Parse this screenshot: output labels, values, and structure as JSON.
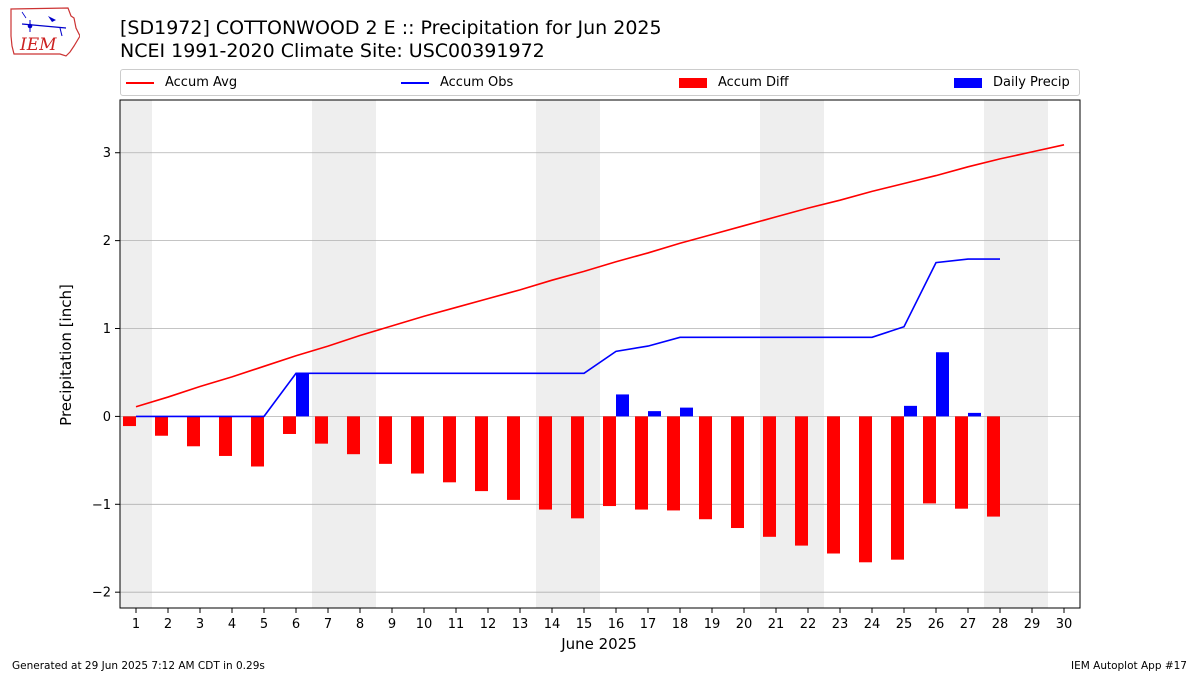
{
  "header": {
    "title": "[SD1972] COTTONWOOD 2 E :: Precipitation for Jun 2025",
    "subtitle": "NCEI 1991-2020 Climate Site: USC00391972",
    "logo_text": "IEM"
  },
  "footer": {
    "generated": "Generated at 29 Jun 2025 7:12 AM CDT in 0.29s",
    "app": "IEM Autoplot App #17"
  },
  "legend": {
    "accum_avg": "Accum Avg",
    "accum_obs": "Accum Obs",
    "accum_diff": "Accum Diff",
    "daily_precip": "Daily Precip"
  },
  "colors": {
    "accum_avg": "#ff0000",
    "accum_obs": "#0000ff",
    "accum_diff": "#ff0000",
    "daily_precip": "#0000ff",
    "weekend_shade": "#eeeeee",
    "grid": "#b0b0b0"
  },
  "chart_data": {
    "type": "bar",
    "xlabel": "June 2025",
    "ylabel": "Precipitation [inch]",
    "ylim": [
      -2.18,
      3.6
    ],
    "xlim": [
      0.5,
      30.5
    ],
    "yticks": [
      -2,
      -1,
      0,
      1,
      2,
      3
    ],
    "ytick_labels": [
      "−2",
      "−1",
      "0",
      "1",
      "2",
      "3"
    ],
    "days": [
      1,
      2,
      3,
      4,
      5,
      6,
      7,
      8,
      9,
      10,
      11,
      12,
      13,
      14,
      15,
      16,
      17,
      18,
      19,
      20,
      21,
      22,
      23,
      24,
      25,
      26,
      27,
      28,
      29,
      30
    ],
    "xtick_labels": [
      "1",
      "2",
      "3",
      "4",
      "5",
      "6",
      "7",
      "8",
      "9",
      "10",
      "11",
      "12",
      "13",
      "14",
      "15",
      "16",
      "17",
      "18",
      "19",
      "20",
      "21",
      "22",
      "23",
      "24",
      "25",
      "26",
      "27",
      "28",
      "29",
      "30"
    ],
    "weekend_days": [
      1,
      7,
      8,
      14,
      15,
      21,
      22,
      28,
      29
    ],
    "grid": "horizontal",
    "legend_position": "top",
    "series": [
      {
        "name": "Accum Avg",
        "kind": "line",
        "values": [
          0.11,
          0.22,
          0.34,
          0.45,
          0.57,
          0.69,
          0.8,
          0.92,
          1.03,
          1.14,
          1.24,
          1.34,
          1.44,
          1.55,
          1.65,
          1.76,
          1.86,
          1.97,
          2.07,
          2.17,
          2.27,
          2.37,
          2.46,
          2.56,
          2.65,
          2.74,
          2.84,
          2.93,
          3.01,
          3.09
        ]
      },
      {
        "name": "Accum Obs",
        "kind": "line",
        "values": [
          0,
          0,
          0,
          0,
          0,
          0.49,
          0.49,
          0.49,
          0.49,
          0.49,
          0.49,
          0.49,
          0.49,
          0.49,
          0.49,
          0.74,
          0.8,
          0.9,
          0.9,
          0.9,
          0.9,
          0.9,
          0.9,
          0.9,
          1.02,
          1.75,
          1.79,
          1.79,
          null,
          null
        ]
      },
      {
        "name": "Accum Diff",
        "kind": "bar",
        "values": [
          -0.11,
          -0.22,
          -0.34,
          -0.45,
          -0.57,
          -0.2,
          -0.31,
          -0.43,
          -0.54,
          -0.65,
          -0.75,
          -0.85,
          -0.95,
          -1.06,
          -1.16,
          -1.02,
          -1.06,
          -1.07,
          -1.17,
          -1.27,
          -1.37,
          -1.47,
          -1.56,
          -1.66,
          -1.63,
          -0.99,
          -1.05,
          -1.14,
          null,
          null
        ]
      },
      {
        "name": "Daily Precip",
        "kind": "bar",
        "values": [
          0,
          0,
          0,
          0,
          0,
          0.49,
          0,
          0,
          0,
          0,
          0,
          0,
          0,
          0,
          0,
          0.25,
          0.06,
          0.1,
          0,
          0,
          0,
          0,
          0,
          0,
          0.12,
          0.73,
          0.04,
          0,
          null,
          null
        ]
      }
    ]
  }
}
